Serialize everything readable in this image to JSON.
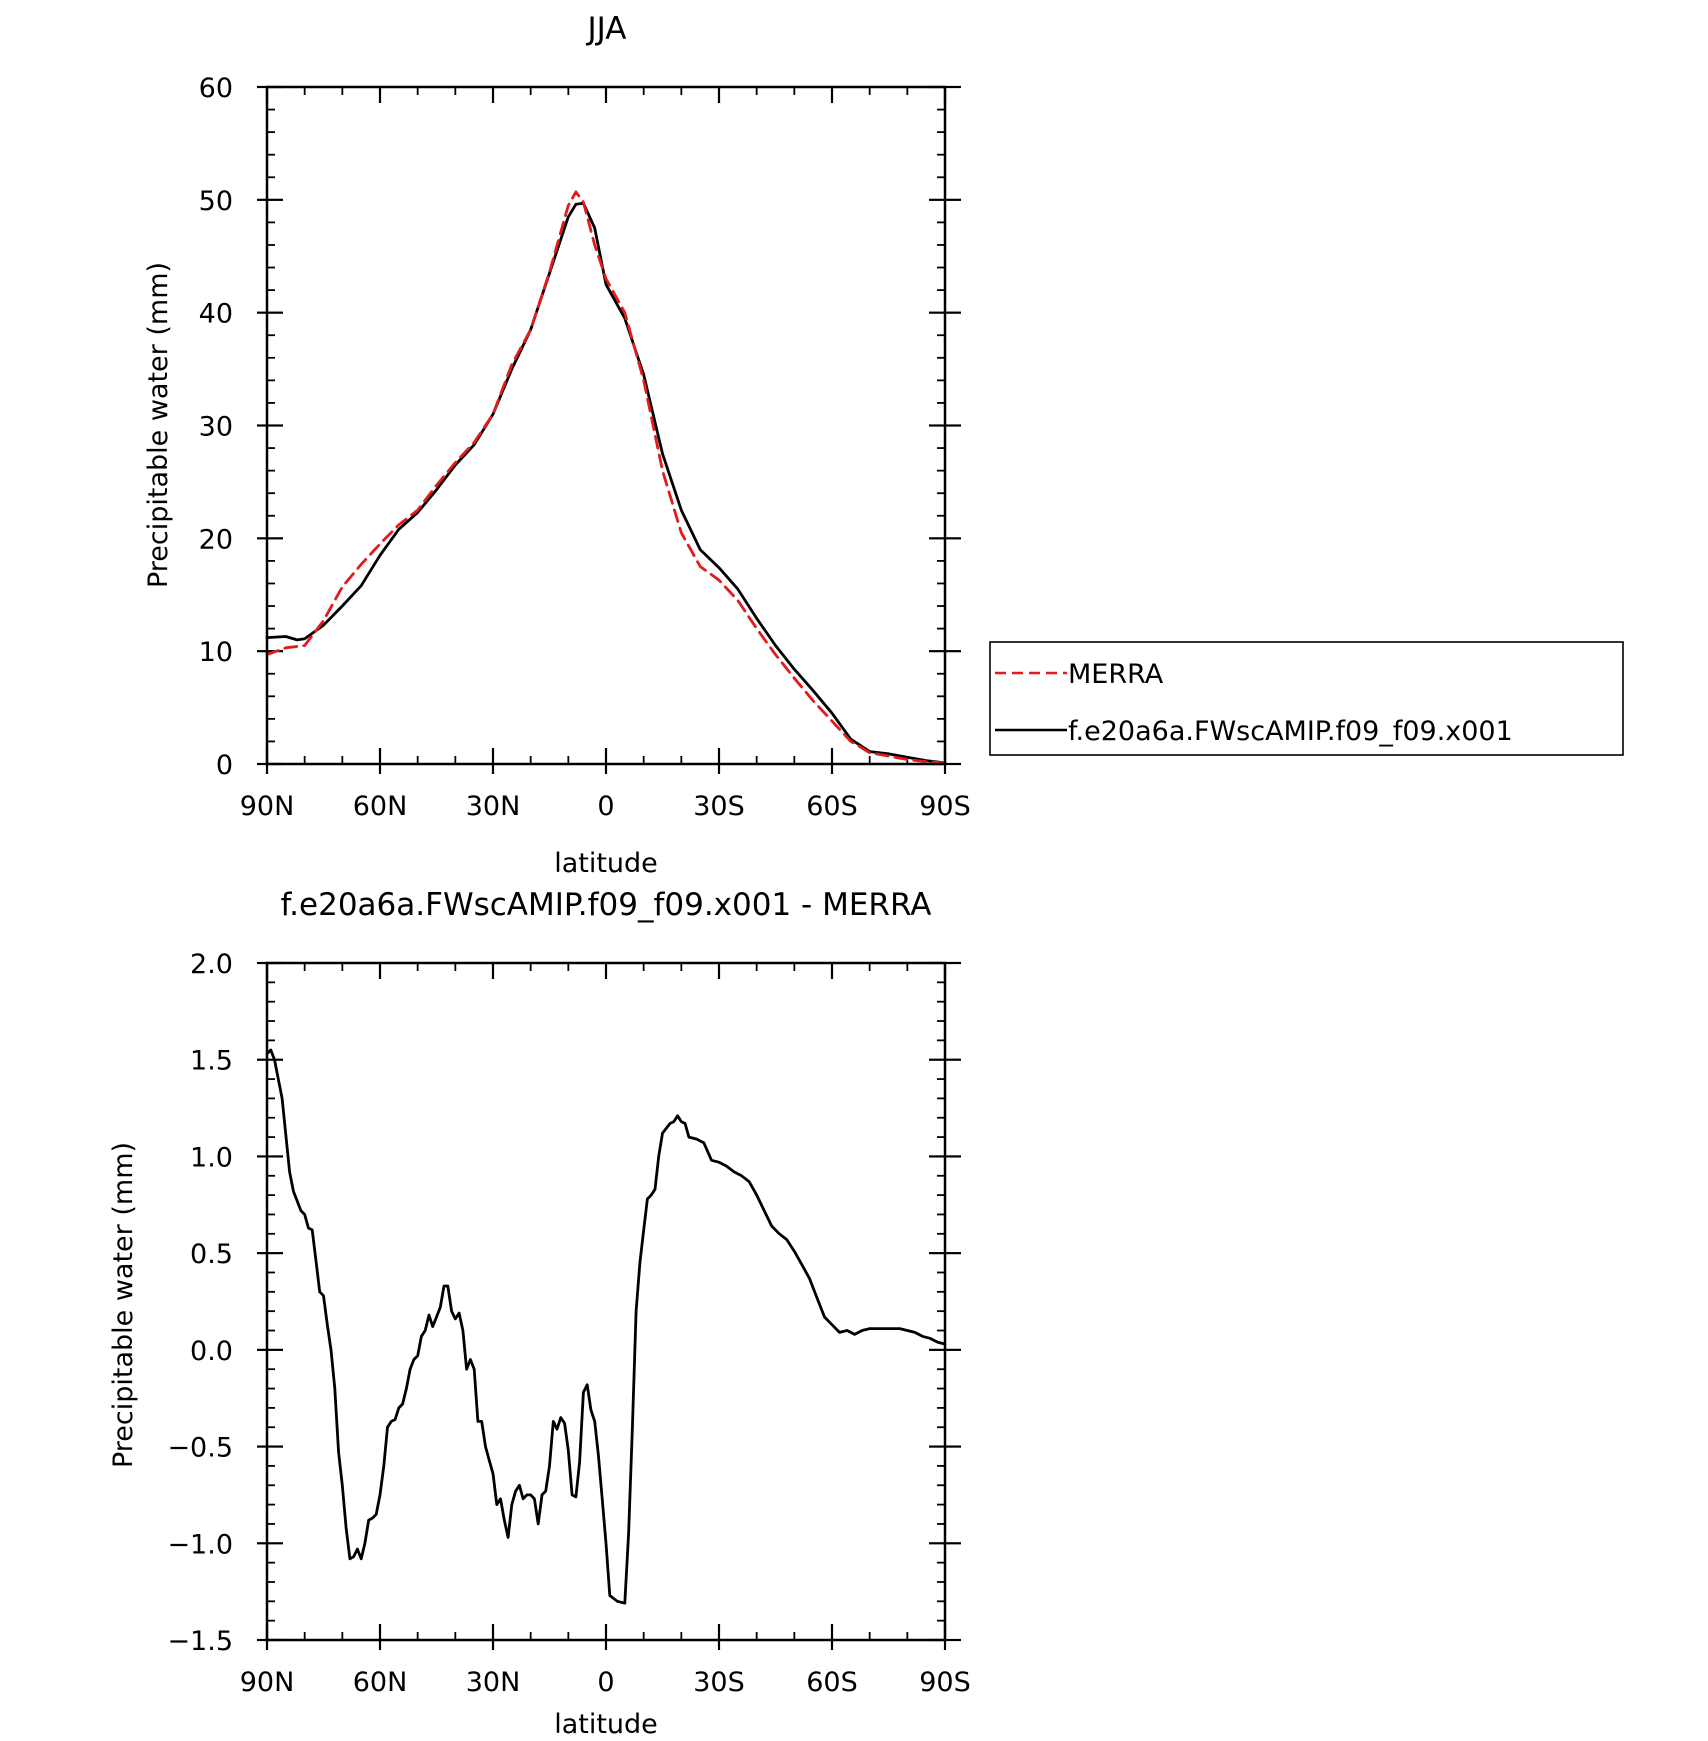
{
  "chart_data": [
    {
      "type": "line",
      "title": "JJA",
      "xlabel": "latitude",
      "ylabel": "Precipitable water (mm)",
      "xlim": [
        90,
        -90
      ],
      "ylim": [
        0,
        60
      ],
      "x_ticks": [
        90,
        60,
        30,
        0,
        -30,
        -60,
        -90
      ],
      "x_tick_labels": [
        "90N",
        "60N",
        "30N",
        "0",
        "30S",
        "60S",
        "90S"
      ],
      "y_ticks": [
        0,
        10,
        20,
        30,
        40,
        50,
        60
      ],
      "y_tick_labels": [
        "0",
        "10",
        "20",
        "30",
        "40",
        "50",
        "60"
      ],
      "legend": {
        "placement": "right-middle, outside plot"
      },
      "series": [
        {
          "name": "MERRA",
          "color": "#e41a1c",
          "style": "dashed",
          "x": [
            90,
            85,
            80,
            75,
            70,
            65,
            60,
            55,
            50,
            45,
            40,
            35,
            30,
            25,
            20,
            15,
            10,
            8,
            6,
            3,
            0,
            -5,
            -10,
            -15,
            -20,
            -25,
            -30,
            -35,
            -40,
            -45,
            -50,
            -55,
            -60,
            -65,
            -70,
            -75,
            -80,
            -85,
            -90
          ],
          "y": [
            9.7,
            10.3,
            10.5,
            12.7,
            15.7,
            17.7,
            19.5,
            21.2,
            22.5,
            24.7,
            26.7,
            28.5,
            31.0,
            35.4,
            38.5,
            43.6,
            49.5,
            50.7,
            49.8,
            46.0,
            43.0,
            40.0,
            34.0,
            26.0,
            20.5,
            17.5,
            16.3,
            14.5,
            12.0,
            9.7,
            7.6,
            5.6,
            3.8,
            2.0,
            1.0,
            0.7,
            0.4,
            0.2,
            0.1
          ]
        },
        {
          "name": "f.e20a6a.FWscAMIP.f09_f09.x001",
          "color": "#000000",
          "style": "solid",
          "x": [
            90,
            85,
            82,
            80,
            75,
            70,
            65,
            60,
            55,
            50,
            45,
            40,
            35,
            30,
            25,
            20,
            15,
            10,
            8,
            6,
            3,
            0,
            -5,
            -10,
            -15,
            -20,
            -25,
            -30,
            -35,
            -40,
            -45,
            -50,
            -55,
            -60,
            -65,
            -70,
            -75,
            -80,
            -85,
            -90
          ],
          "y": [
            11.2,
            11.3,
            11.0,
            11.1,
            12.3,
            14.0,
            15.8,
            18.5,
            20.8,
            22.3,
            24.3,
            26.5,
            28.3,
            31.0,
            35.0,
            38.5,
            43.5,
            48.5,
            49.6,
            49.7,
            47.5,
            42.5,
            39.5,
            34.5,
            27.5,
            22.5,
            19.0,
            17.4,
            15.5,
            12.9,
            10.5,
            8.4,
            6.5,
            4.5,
            2.2,
            1.1,
            0.9,
            0.6,
            0.3,
            0.1
          ]
        }
      ]
    },
    {
      "type": "line",
      "title": "f.e20a6a.FWscAMIP.f09_f09.x001 - MERRA",
      "xlabel": "latitude",
      "ylabel": "Precipitable water (mm)",
      "xlim": [
        90,
        -90
      ],
      "ylim": [
        -1.5,
        2.0
      ],
      "x_ticks": [
        90,
        60,
        30,
        0,
        -30,
        -60,
        -90
      ],
      "x_tick_labels": [
        "90N",
        "60N",
        "30N",
        "0",
        "30S",
        "60S",
        "90S"
      ],
      "y_ticks": [
        -1.5,
        -1.0,
        -0.5,
        0.0,
        0.5,
        1.0,
        1.5,
        2.0
      ],
      "y_tick_labels": [
        "−1.5",
        "−1.0",
        "−0.5",
        "0.0",
        "0.5",
        "1.0",
        "1.5",
        "2.0"
      ],
      "series": [
        {
          "color": "#000000",
          "style": "solid",
          "x": [
            90,
            89,
            88,
            86,
            84,
            83,
            81,
            80,
            79,
            78,
            77,
            76,
            75,
            74,
            73,
            72,
            71,
            70,
            69,
            68,
            67,
            66,
            65,
            64,
            63,
            62,
            61,
            60,
            59,
            58,
            57,
            56,
            55,
            54,
            53,
            52,
            51,
            50,
            49,
            48,
            47,
            46,
            45,
            44,
            43,
            42,
            41,
            40,
            39,
            38,
            37,
            36,
            35,
            34,
            33,
            32,
            31,
            30,
            29,
            28,
            27,
            26,
            25,
            24,
            23,
            22,
            21,
            20,
            19,
            18,
            17,
            16,
            15,
            14,
            13,
            12,
            11,
            10,
            9,
            8,
            7,
            6,
            5,
            4,
            3,
            2,
            1,
            0,
            -1,
            -3,
            -5,
            -6,
            -7,
            -8,
            -9,
            -10,
            -11,
            -12,
            -13,
            -14,
            -15,
            -17,
            -18,
            -19,
            -20,
            -21,
            -22,
            -24,
            -26,
            -28,
            -30,
            -32,
            -34,
            -36,
            -38,
            -40,
            -42,
            -44,
            -46,
            -48,
            -50,
            -52,
            -54,
            -56,
            -58,
            -60,
            -62,
            -64,
            -66,
            -68,
            -70,
            -72,
            -74,
            -76,
            -78,
            -80,
            -82,
            -84,
            -86,
            -88,
            -90
          ],
          "y": [
            1.53,
            1.55,
            1.5,
            1.3,
            0.92,
            0.82,
            0.72,
            0.7,
            0.63,
            0.62,
            0.46,
            0.3,
            0.28,
            0.13,
            0.0,
            -0.2,
            -0.53,
            -0.7,
            -0.92,
            -1.08,
            -1.07,
            -1.03,
            -1.08,
            -1.0,
            -0.88,
            -0.87,
            -0.85,
            -0.75,
            -0.6,
            -0.4,
            -0.37,
            -0.36,
            -0.3,
            -0.28,
            -0.2,
            -0.1,
            -0.05,
            -0.03,
            0.07,
            0.1,
            0.18,
            0.12,
            0.17,
            0.22,
            0.33,
            0.33,
            0.2,
            0.16,
            0.19,
            0.1,
            -0.1,
            -0.05,
            -0.1,
            -0.37,
            -0.37,
            -0.5,
            -0.57,
            -0.64,
            -0.8,
            -0.77,
            -0.88,
            -0.97,
            -0.8,
            -0.73,
            -0.7,
            -0.77,
            -0.75,
            -0.75,
            -0.77,
            -0.9,
            -0.75,
            -0.73,
            -0.6,
            -0.37,
            -0.41,
            -0.35,
            -0.38,
            -0.52,
            -0.75,
            -0.76,
            -0.58,
            -0.22,
            -0.18,
            -0.31,
            -0.37,
            -0.55,
            -0.77,
            -1.0,
            -1.27,
            -1.3,
            -1.31,
            -0.95,
            -0.4,
            0.2,
            0.45,
            0.62,
            0.78,
            0.8,
            0.83,
            1.0,
            1.12,
            1.17,
            1.18,
            1.21,
            1.18,
            1.17,
            1.1,
            1.09,
            1.07,
            0.98,
            0.97,
            0.95,
            0.92,
            0.9,
            0.87,
            0.8,
            0.72,
            0.64,
            0.6,
            0.57,
            0.51,
            0.44,
            0.37,
            0.27,
            0.17,
            0.13,
            0.09,
            0.1,
            0.08,
            0.1,
            0.11,
            0.11,
            0.11,
            0.11,
            0.11,
            0.1,
            0.09,
            0.07,
            0.06,
            0.04,
            0.03
          ]
        }
      ]
    }
  ]
}
